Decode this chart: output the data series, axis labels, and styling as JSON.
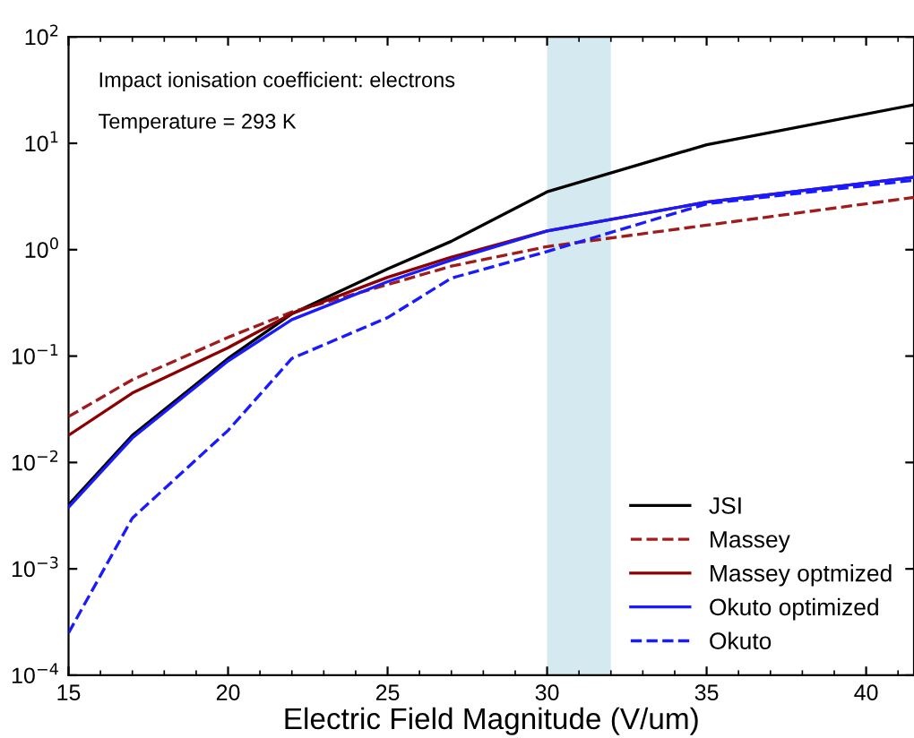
{
  "chart_data": {
    "type": "line",
    "xlabel": "Electric Field Magnitude (V/um)",
    "annotations": [
      "Impact ionisation coefficient: electrons",
      "Temperature = 293 K"
    ],
    "x": [
      15,
      17,
      20,
      22,
      25,
      27,
      30,
      35,
      41.5
    ],
    "series": [
      {
        "name": "JSI",
        "color": "#000000",
        "line_style": "solid",
        "values": [
          0.004,
          0.018,
          0.095,
          0.25,
          0.66,
          1.2,
          3.5,
          9.7,
          23
        ]
      },
      {
        "name": "Massey",
        "color": "#a01c1c",
        "line_style": "dashed",
        "values": [
          0.027,
          0.06,
          0.15,
          0.26,
          0.47,
          0.7,
          1.07,
          1.7,
          3.1
        ]
      },
      {
        "name": "Massey optmized",
        "color": "#8b0000",
        "line_style": "solid",
        "values": [
          0.018,
          0.045,
          0.12,
          0.25,
          0.55,
          0.85,
          1.5,
          2.8,
          4.8
        ]
      },
      {
        "name": "Okuto optimized",
        "color": "#1a1aff",
        "line_style": "solid",
        "values": [
          0.0038,
          0.017,
          0.09,
          0.22,
          0.5,
          0.8,
          1.5,
          2.8,
          4.8
        ]
      },
      {
        "name": "Okuto",
        "color": "#1a1aff",
        "line_style": "dashed",
        "values": [
          0.00025,
          0.003,
          0.02,
          0.095,
          0.23,
          0.54,
          0.96,
          2.7,
          4.5
        ]
      }
    ],
    "bands": [
      {
        "axis": "x",
        "from": 30,
        "to": 32,
        "color": "#d4eaf0"
      }
    ],
    "log": "y",
    "xlim": [
      15,
      41.5
    ],
    "xticks": [
      15,
      20,
      25,
      30,
      35,
      40
    ],
    "ylim": [
      0.0001,
      100
    ],
    "yticks": [
      {
        "value": 0.0001,
        "label": "10$^{−4}$"
      },
      {
        "value": 0.001,
        "label": "10$^{−3}$"
      },
      {
        "value": 0.01,
        "label": "10$^{−2}$"
      },
      {
        "value": 0.1,
        "label": "10$^{−1}$"
      },
      {
        "value": 1,
        "label": "10$^{0}$"
      },
      {
        "value": 10,
        "label": "10$^{1}$"
      },
      {
        "value": 100,
        "label": "10$^{2}$"
      }
    ],
    "grid": false,
    "legend": "bottom right"
  }
}
